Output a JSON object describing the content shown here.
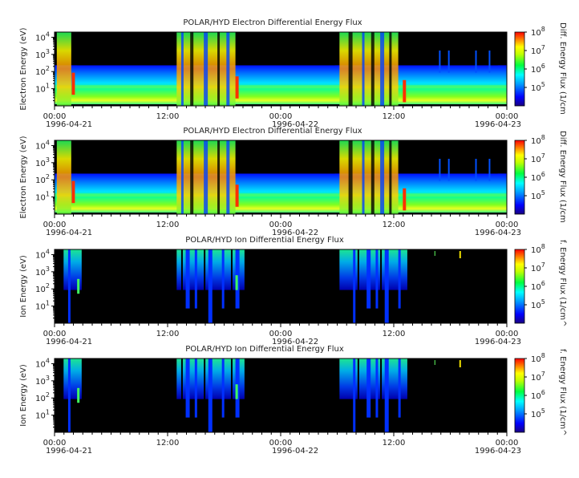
{
  "figure": {
    "x_tick_labels": [
      "00:00",
      "12:00",
      "00:00",
      "12:00",
      "00:00"
    ],
    "date_labels": [
      "1996-04-21",
      "1996-04-22",
      "1996-04-23"
    ],
    "y_tick_exponents": [
      "1",
      "2",
      "3",
      "4"
    ],
    "colorbar_exponents": [
      "5",
      "6",
      "7",
      "8"
    ]
  },
  "chart_data": [
    {
      "type": "heatmap",
      "title": "POLAR/HYD  Electron Differential Energy Flux",
      "ylabel": "Electron Energy (eV)",
      "colorbar_label": "Diff. Energy Flux (1/cm",
      "x_range": [
        "1996-04-21T00:00",
        "1996-04-23T00:00"
      ],
      "y_range": [
        1,
        20000
      ],
      "y_scale": "log",
      "color_range": [
        10000,
        100000000
      ],
      "color_scale": "log",
      "colormap": "rainbow (blue-cyan-green-yellow-red), black below threshold"
    },
    {
      "type": "heatmap",
      "title": "POLAR/HYD  Electron Differential Energy Flux",
      "ylabel": "Electron Energy (eV)",
      "colorbar_label": "Diff. Energy Flux (1/cm",
      "x_range": [
        "1996-04-21T00:00",
        "1996-04-23T00:00"
      ],
      "y_range": [
        1,
        20000
      ],
      "y_scale": "log",
      "color_range": [
        10000,
        100000000
      ],
      "color_scale": "log",
      "colormap": "rainbow (blue-cyan-green-yellow-red), black below threshold"
    },
    {
      "type": "heatmap",
      "title": "POLAR/HYD  Ion Differential Energy Flux",
      "ylabel": "Ion Energy (eV)",
      "colorbar_label": "f. Energy Flux (1/cm^",
      "x_range": [
        "1996-04-21T00:00",
        "1996-04-23T00:00"
      ],
      "y_range": [
        1,
        20000
      ],
      "y_scale": "log",
      "color_range": [
        10000,
        100000000
      ],
      "color_scale": "log",
      "colormap": "rainbow (blue-cyan-green-yellow-red), black below threshold"
    },
    {
      "type": "heatmap",
      "title": "POLAR/HYD  Ion Differential Energy Flux",
      "ylabel": "Ion Energy (eV)",
      "colorbar_label": "f. Energy Flux (1/cm^",
      "x_range": [
        "1996-04-21T00:00",
        "1996-04-23T00:00"
      ],
      "y_range": [
        1,
        20000
      ],
      "y_scale": "log",
      "color_range": [
        10000,
        100000000
      ],
      "color_scale": "log",
      "colormap": "rainbow (blue-cyan-green-yellow-red), black below threshold"
    }
  ]
}
